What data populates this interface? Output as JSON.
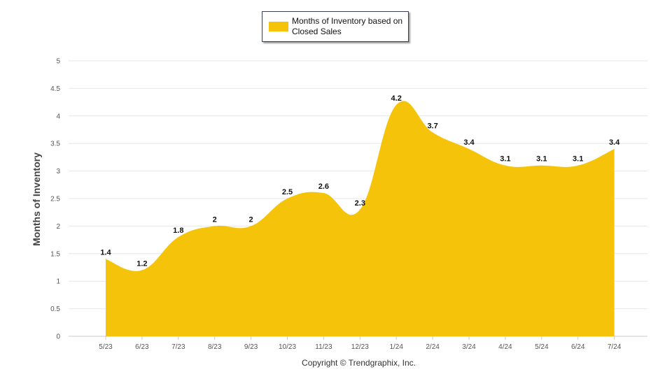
{
  "chart_data": {
    "type": "area",
    "categories": [
      "5/23",
      "6/23",
      "7/23",
      "8/23",
      "9/23",
      "10/23",
      "11/23",
      "12/23",
      "1/24",
      "2/24",
      "3/24",
      "4/24",
      "5/24",
      "6/24",
      "7/24"
    ],
    "series": [
      {
        "name": "Months of Inventory based on Closed Sales",
        "values": [
          1.4,
          1.2,
          1.8,
          2,
          2,
          2.5,
          2.6,
          2.3,
          4.2,
          3.7,
          3.4,
          3.1,
          3.1,
          3.1,
          3.4
        ],
        "data_labels": [
          "1.4",
          "1.2",
          "1.8",
          "2",
          "2",
          "2.5",
          "2.6",
          "2.3",
          "4.2",
          "3.7",
          "3.4",
          "3.1",
          "3.1",
          "3.1",
          "3.4"
        ]
      }
    ],
    "ylabel": "Months of Inventory",
    "xlabel": "",
    "ylim": [
      0,
      5
    ],
    "yticks": [
      "0",
      "0.5",
      "1",
      "1.5",
      "2",
      "2.5",
      "3",
      "3.5",
      "4",
      "4.5",
      "5"
    ],
    "grid": true,
    "legend_position": "top-center",
    "fill_color": "#F5C40A"
  },
  "footer": {
    "copyright": "Copyright © Trendgraphix, Inc."
  }
}
